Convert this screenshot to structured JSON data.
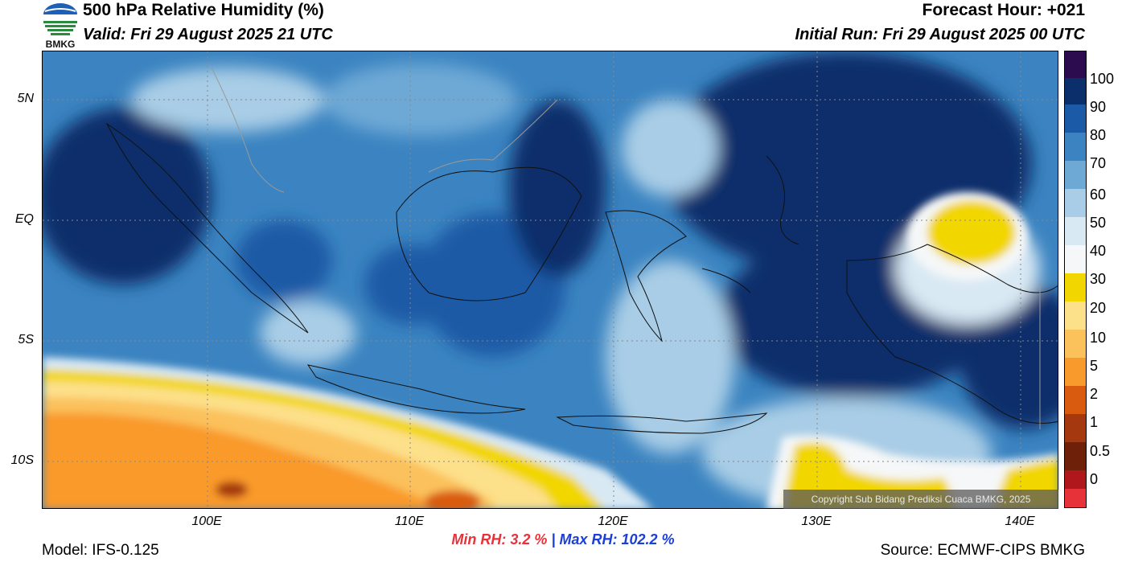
{
  "header": {
    "title": "500 hPa Relative Humidity (%)",
    "valid": "Valid: Fri 29 August 2025 21 UTC",
    "forecast_hour": "Forecast Hour: +021",
    "initial_run": "Initial Run: Fri 29 August 2025 00 UTC"
  },
  "logo": {
    "text": "BMKG",
    "icon": "bmkg-logo-icon"
  },
  "axes": {
    "lat_labels": [
      "5N",
      "EQ",
      "5S",
      "10S"
    ],
    "lon_labels": [
      "100E",
      "110E",
      "120E",
      "130E",
      "140E"
    ]
  },
  "stats": {
    "min_rh": "Min RH:   3.2 %",
    "separator": "|",
    "max_rh": "Max RH: 102.2 %"
  },
  "footer": {
    "model": "Model: IFS-0.125",
    "source": "Source: ECMWF-CIPS BMKG",
    "copyright": "Copyright Sub Bidang Prediksi Cuaca BMKG, 2025"
  },
  "colorbar": {
    "labels": [
      "100",
      "90",
      "80",
      "70",
      "60",
      "50",
      "40",
      "30",
      "20",
      "10",
      "5",
      "2",
      "1",
      "0.5",
      "0"
    ],
    "colors": [
      "#2d0b4f",
      "#0b2f6b",
      "#1a5aa6",
      "#3b84c1",
      "#6ea9d6",
      "#a9cde6",
      "#d9e9f4",
      "#f5f7f8",
      "#f2d600",
      "#fde08a",
      "#fbc15b",
      "#f99a2c",
      "#d95b0f",
      "#a6380f",
      "#6e2108",
      "#b0171d",
      "#e8323a"
    ]
  },
  "colors": {
    "ocean_deep": "#0b2f6b",
    "humid": "#3b84c1",
    "moderate": "#a9cde6",
    "dry_yellow": "#f2d600",
    "dry_orange": "#f99a2c"
  }
}
